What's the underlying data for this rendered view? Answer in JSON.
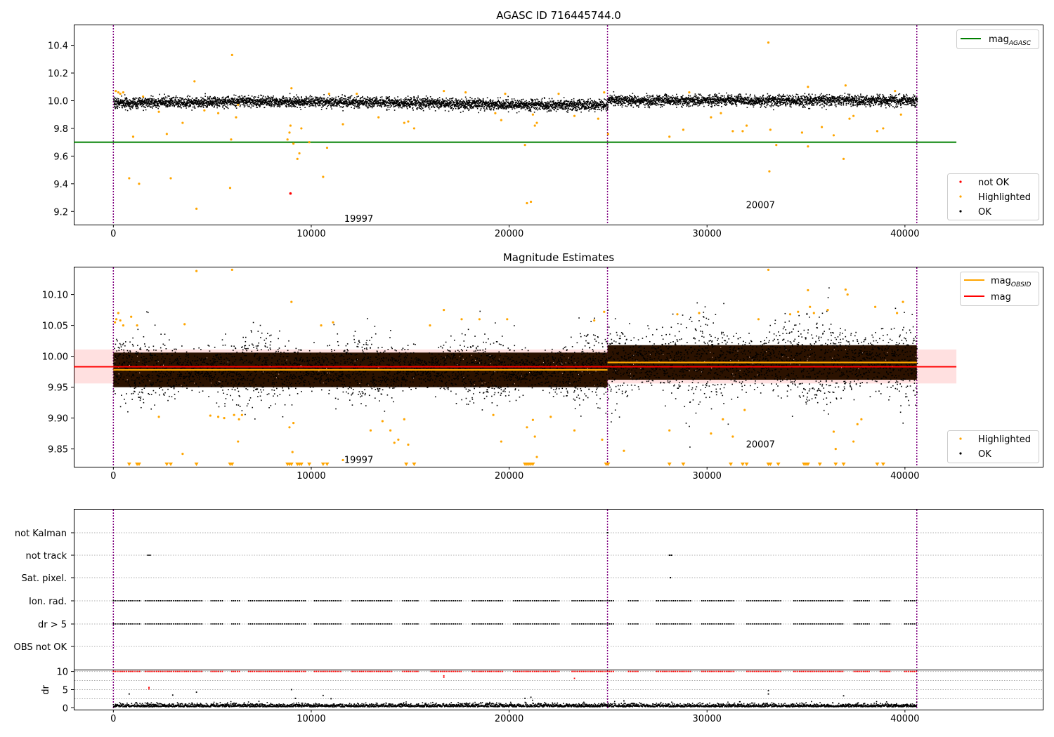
{
  "chart_data": [
    {
      "type": "scatter",
      "title": "AGASC ID 716445744.0",
      "xlim": [
        -2000,
        47000
      ],
      "ylim": [
        9.1,
        10.55
      ],
      "xticks": [
        0,
        10000,
        20000,
        30000,
        40000
      ],
      "yticks": [
        9.2,
        9.4,
        9.6,
        9.8,
        10.0,
        10.2,
        10.4
      ],
      "ytick_labels": [
        "9.2",
        "9.4",
        "9.6",
        "9.8",
        "10.0",
        "10.2",
        "10.4"
      ],
      "xtick_labels": [
        "0",
        "10000",
        "20000",
        "30000",
        "40000"
      ],
      "vlines": [
        0,
        24970,
        40600
      ],
      "hline": {
        "name_main": "mag",
        "name_sub": "AGASC",
        "y": 9.7,
        "x_range": [
          -2000,
          42600
        ],
        "color": "#008000"
      },
      "obsid_labels": [
        {
          "text": "19997",
          "x": 12400,
          "y": 9.15
        },
        {
          "text": "20007",
          "x": 32700,
          "y": 9.25
        }
      ],
      "ok_band": {
        "segments": [
          {
            "x": [
              0,
              24970
            ],
            "center": 9.98,
            "half_width": 0.035
          },
          {
            "x": [
              24970,
              40600
            ],
            "center": 10.0,
            "half_width": 0.035
          }
        ]
      },
      "highlighted_points": [
        [
          120,
          10.07
        ],
        [
          250,
          10.06
        ],
        [
          350,
          10.05
        ],
        [
          500,
          10.06
        ],
        [
          800,
          9.44
        ],
        [
          1000,
          9.74
        ],
        [
          1300,
          9.4
        ],
        [
          1500,
          10.03
        ],
        [
          2300,
          9.92
        ],
        [
          2700,
          9.76
        ],
        [
          2900,
          9.44
        ],
        [
          3500,
          9.84
        ],
        [
          4100,
          10.14
        ],
        [
          4200,
          9.22
        ],
        [
          4600,
          9.93
        ],
        [
          5300,
          9.91
        ],
        [
          5900,
          9.37
        ],
        [
          5950,
          9.72
        ],
        [
          6000,
          10.33
        ],
        [
          6200,
          9.88
        ],
        [
          6300,
          9.97
        ],
        [
          8800,
          9.72
        ],
        [
          8900,
          9.77
        ],
        [
          8950,
          9.82
        ],
        [
          9000,
          10.09
        ],
        [
          9100,
          9.69
        ],
        [
          9300,
          9.58
        ],
        [
          9400,
          9.62
        ],
        [
          9500,
          9.8
        ],
        [
          9900,
          9.7
        ],
        [
          10600,
          9.45
        ],
        [
          10800,
          9.66
        ],
        [
          10900,
          10.05
        ],
        [
          11600,
          9.83
        ],
        [
          12300,
          10.05
        ],
        [
          13400,
          9.88
        ],
        [
          14700,
          9.84
        ],
        [
          14900,
          9.85
        ],
        [
          15200,
          9.8
        ],
        [
          16700,
          10.07
        ],
        [
          17800,
          10.06
        ],
        [
          19300,
          9.91
        ],
        [
          19600,
          9.86
        ],
        [
          19800,
          10.05
        ],
        [
          20800,
          9.68
        ],
        [
          20900,
          9.26
        ],
        [
          21100,
          9.27
        ],
        [
          21200,
          9.9
        ],
        [
          21300,
          9.82
        ],
        [
          21400,
          9.84
        ],
        [
          22500,
          10.05
        ],
        [
          23300,
          9.89
        ],
        [
          24500,
          9.87
        ],
        [
          24800,
          10.06
        ],
        [
          25000,
          9.76
        ],
        [
          28100,
          9.74
        ],
        [
          28800,
          9.79
        ],
        [
          29100,
          10.06
        ],
        [
          30200,
          9.88
        ],
        [
          30700,
          9.91
        ],
        [
          31300,
          9.78
        ],
        [
          31800,
          9.78
        ],
        [
          32000,
          9.82
        ],
        [
          33100,
          10.42
        ],
        [
          33150,
          9.49
        ],
        [
          33200,
          9.79
        ],
        [
          33500,
          9.68
        ],
        [
          34800,
          9.77
        ],
        [
          35100,
          9.67
        ],
        [
          35100,
          10.1
        ],
        [
          35800,
          9.81
        ],
        [
          36400,
          9.75
        ],
        [
          36900,
          9.58
        ],
        [
          37000,
          10.11
        ],
        [
          37200,
          9.87
        ],
        [
          37400,
          9.89
        ],
        [
          38600,
          9.78
        ],
        [
          38900,
          9.8
        ],
        [
          39500,
          10.07
        ],
        [
          39800,
          9.9
        ]
      ],
      "not_ok_points": [
        [
          8950,
          9.33
        ]
      ],
      "legend_lines": {
        "items": [
          {
            "label_main": "mag",
            "label_sub": "AGASC",
            "color": "#008000"
          }
        ],
        "placement": "upper right"
      },
      "legend_points": {
        "items": [
          {
            "label": "not OK",
            "color": "#ff0000"
          },
          {
            "label": "Highlighted",
            "color": "#ffa500"
          },
          {
            "label": "OK",
            "color": "#000000"
          }
        ],
        "placement": "lower right"
      }
    },
    {
      "type": "scatter",
      "title": "Magnitude Estimates",
      "xlim": [
        -2000,
        47000
      ],
      "ylim": [
        9.82,
        10.145
      ],
      "xticks": [
        0,
        10000,
        20000,
        30000,
        40000
      ],
      "yticks": [
        9.85,
        9.9,
        9.95,
        10.0,
        10.05,
        10.1
      ],
      "ytick_labels": [
        "9.85",
        "9.90",
        "9.95",
        "10.00",
        "10.05",
        "10.10"
      ],
      "xtick_labels": [
        "0",
        "10000",
        "20000",
        "30000",
        "40000"
      ],
      "vlines": [
        0,
        24970,
        40600
      ],
      "mag_line": {
        "name": "mag",
        "y": 9.983,
        "x_range": [
          -2000,
          42600
        ],
        "band": [
          9.956,
          10.011
        ],
        "color": "#ff0000"
      },
      "obsid_lines": {
        "name_main": "mag",
        "name_sub": "OBSID",
        "color": "#ffa500",
        "segments": [
          {
            "x": [
              0,
              24970
            ],
            "y": 9.978
          },
          {
            "x": [
              24970,
              40600
            ],
            "y": 9.99
          }
        ]
      },
      "obsid_labels": [
        {
          "text": "19997",
          "x": 12400,
          "y": 9.833
        },
        {
          "text": "20007",
          "x": 32700,
          "y": 9.858
        }
      ],
      "highlighted_points": [
        [
          80,
          10.055
        ],
        [
          150,
          10.06
        ],
        [
          250,
          10.07
        ],
        [
          350,
          10.058
        ],
        [
          500,
          10.05
        ],
        [
          900,
          10.064
        ],
        [
          1200,
          10.05
        ],
        [
          2300,
          9.902
        ],
        [
          3500,
          9.842
        ],
        [
          3600,
          10.052
        ],
        [
          4200,
          10.138
        ],
        [
          4900,
          9.904
        ],
        [
          5300,
          9.902
        ],
        [
          5600,
          9.9
        ],
        [
          6000,
          10.14
        ],
        [
          6100,
          9.905
        ],
        [
          6300,
          9.862
        ],
        [
          6350,
          9.898
        ],
        [
          6500,
          9.905
        ],
        [
          8900,
          9.885
        ],
        [
          9000,
          10.088
        ],
        [
          9050,
          9.845
        ],
        [
          9100,
          9.892
        ],
        [
          10500,
          10.05
        ],
        [
          11100,
          10.055
        ],
        [
          11600,
          9.832
        ],
        [
          13000,
          9.88
        ],
        [
          13600,
          9.895
        ],
        [
          14000,
          9.88
        ],
        [
          14200,
          9.86
        ],
        [
          14400,
          9.865
        ],
        [
          14700,
          9.898
        ],
        [
          14900,
          9.857
        ],
        [
          16000,
          10.05
        ],
        [
          16700,
          10.075
        ],
        [
          17600,
          10.06
        ],
        [
          18500,
          10.06
        ],
        [
          19200,
          9.905
        ],
        [
          19600,
          9.862
        ],
        [
          19900,
          10.06
        ],
        [
          20900,
          9.885
        ],
        [
          21200,
          9.897
        ],
        [
          21300,
          9.87
        ],
        [
          21400,
          9.837
        ],
        [
          22100,
          9.902
        ],
        [
          23300,
          9.88
        ],
        [
          24300,
          10.058
        ],
        [
          24700,
          9.865
        ],
        [
          24800,
          10.072
        ],
        [
          25800,
          9.847
        ],
        [
          28100,
          9.88
        ],
        [
          28500,
          10.068
        ],
        [
          29600,
          10.07
        ],
        [
          30200,
          9.875
        ],
        [
          30800,
          9.898
        ],
        [
          31300,
          9.87
        ],
        [
          31900,
          9.913
        ],
        [
          32600,
          10.06
        ],
        [
          33100,
          10.14
        ],
        [
          34200,
          10.068
        ],
        [
          34600,
          10.072
        ],
        [
          35100,
          10.107
        ],
        [
          35200,
          10.08
        ],
        [
          35400,
          10.07
        ],
        [
          36100,
          10.075
        ],
        [
          36400,
          9.878
        ],
        [
          36500,
          9.85
        ],
        [
          37000,
          10.108
        ],
        [
          37100,
          10.1
        ],
        [
          37400,
          9.862
        ],
        [
          37600,
          9.89
        ],
        [
          37800,
          9.898
        ],
        [
          38500,
          10.08
        ],
        [
          39600,
          10.07
        ],
        [
          39900,
          10.088
        ]
      ],
      "offscale_low_x": [
        800,
        1200,
        1300,
        2700,
        2900,
        4200,
        5900,
        6000,
        8800,
        8900,
        9000,
        9300,
        9400,
        9500,
        9900,
        10600,
        10800,
        14800,
        15200,
        20800,
        20900,
        21000,
        21100,
        21200,
        24900,
        25000,
        28100,
        28800,
        31200,
        31800,
        32000,
        33100,
        33200,
        33600,
        34900,
        35000,
        35100,
        35700,
        36500,
        36900,
        38600,
        38900
      ],
      "legend_lines": {
        "items": [
          {
            "label_main": "mag",
            "label_sub": "OBSID",
            "color": "#ffa500"
          },
          {
            "label_main": "mag",
            "label_sub": "",
            "color": "#ff0000"
          }
        ],
        "placement": "upper right"
      },
      "legend_points": {
        "items": [
          {
            "label": "Highlighted",
            "color": "#ffa500"
          },
          {
            "label": "OK",
            "color": "#000000"
          }
        ],
        "placement": "lower right"
      }
    },
    {
      "type": "scatter",
      "title": "",
      "xlim": [
        -2000,
        47000
      ],
      "yticks_categorical": [
        "not Kalman",
        "not track",
        "Sat. pixel.",
        "Ion. rad.",
        "dr > 5",
        "OBS not OK"
      ],
      "vlines": [
        0,
        24970,
        40600
      ],
      "flags": {
        "not Kalman": [
          24970
        ],
        "not track": [
          1750,
          1850,
          28100,
          28200
        ],
        "Sat. pixel.": [
          28150
        ],
        "Ion. rad.": "periodic",
        "dr > 5": "periodic",
        "OBS not OK": []
      },
      "flag_gap_x": [
        [
          1400,
          1600
        ],
        [
          4500,
          4900
        ],
        [
          5600,
          5900
        ],
        [
          6400,
          6800
        ],
        [
          9700,
          10100
        ],
        [
          11500,
          12000
        ],
        [
          14100,
          14600
        ],
        [
          15400,
          16000
        ],
        [
          17600,
          18100
        ],
        [
          19700,
          20200
        ],
        [
          22600,
          23100
        ],
        [
          25300,
          26000
        ],
        [
          26600,
          27400
        ],
        [
          29200,
          29700
        ],
        [
          31400,
          32000
        ],
        [
          33800,
          34300
        ],
        [
          36900,
          37400
        ],
        [
          38200,
          38700
        ],
        [
          39300,
          39900
        ]
      ]
    },
    {
      "type": "scatter",
      "title": "",
      "ylabel": "dr",
      "xlim": [
        -2000,
        47000
      ],
      "ylim": [
        -0.5,
        10.5
      ],
      "xticks": [
        0,
        10000,
        20000,
        30000,
        40000
      ],
      "xtick_labels": [
        "0",
        "10000",
        "20000",
        "30000",
        "40000"
      ],
      "yticks": [
        0,
        5,
        10
      ],
      "ytick_labels": [
        "0",
        "5",
        "10"
      ],
      "vlines": [
        0,
        24970,
        40600
      ],
      "gridlines_y": [
        2.5,
        5,
        7.5,
        10
      ],
      "dr_high_points": [
        [
          800,
          3.8
        ],
        [
          1800,
          5.6
        ],
        [
          1800,
          5.2
        ],
        [
          3000,
          3.5
        ],
        [
          4200,
          4.3
        ],
        [
          9000,
          5.0
        ],
        [
          9200,
          2.6
        ],
        [
          10600,
          3.4
        ],
        [
          11000,
          2.5
        ],
        [
          16700,
          8.4
        ],
        [
          16700,
          8.8
        ],
        [
          20800,
          2.6
        ],
        [
          21100,
          2.9
        ],
        [
          23300,
          8.1
        ],
        [
          33100,
          4.7
        ],
        [
          33100,
          3.8
        ],
        [
          36900,
          3.3
        ],
        [
          25800,
          1.9
        ]
      ],
      "dr_cap_value": 10,
      "dr_cap_points": "matches flag periodicity"
    }
  ]
}
